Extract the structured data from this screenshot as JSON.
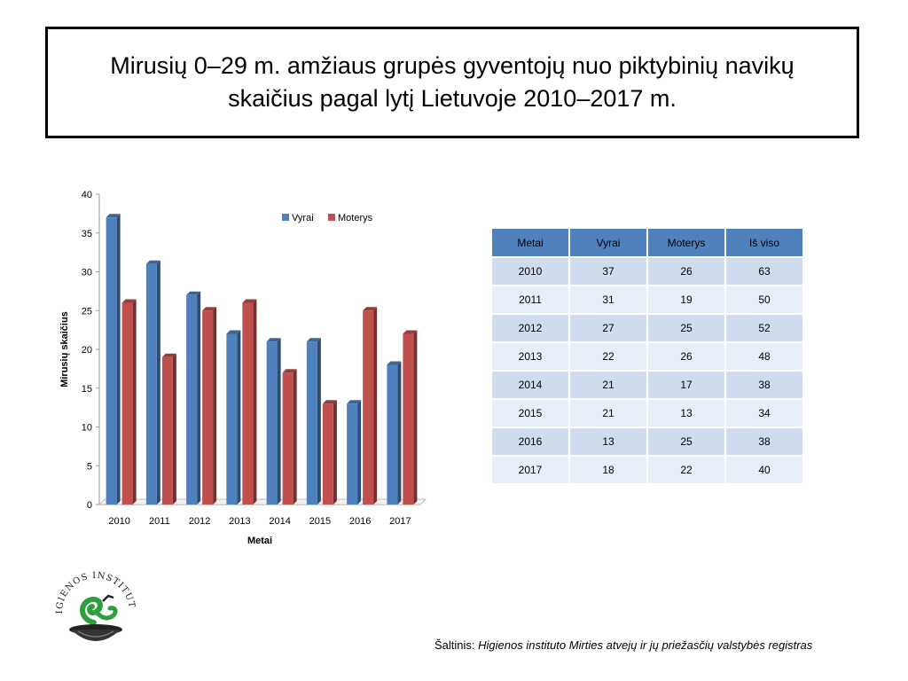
{
  "title": {
    "line1": "Mirusių 0–29 m. amžiaus grupės gyventojų nuo piktybinių navikų",
    "line2": "skaičius pagal lytį Lietuvoje 2010–2017 m."
  },
  "chart_data": {
    "type": "bar",
    "categories": [
      "2010",
      "2011",
      "2012",
      "2013",
      "2014",
      "2015",
      "2016",
      "2017"
    ],
    "series": [
      {
        "name": "Vyrai",
        "color": "#4f81bd",
        "values": [
          37,
          31,
          27,
          22,
          21,
          21,
          13,
          18
        ]
      },
      {
        "name": "Moterys",
        "color": "#c0504d",
        "values": [
          26,
          19,
          25,
          26,
          17,
          13,
          25,
          22
        ]
      }
    ],
    "xlabel": "Metai",
    "ylabel": "Mirusių skaičius",
    "ylim": [
      0,
      40
    ],
    "yticks": [
      0,
      5,
      10,
      15,
      20,
      25,
      30,
      35,
      40
    ],
    "grid": false,
    "legend": "top-right",
    "style": "3d-clustered-columns"
  },
  "table": {
    "headers": [
      "Metai",
      "Vyrai",
      "Moterys",
      "Iš viso"
    ],
    "rows": [
      [
        "2010",
        "37",
        "26",
        "63"
      ],
      [
        "2011",
        "31",
        "19",
        "50"
      ],
      [
        "2012",
        "27",
        "25",
        "52"
      ],
      [
        "2013",
        "22",
        "26",
        "48"
      ],
      [
        "2014",
        "21",
        "17",
        "38"
      ],
      [
        "2015",
        "21",
        "13",
        "34"
      ],
      [
        "2016",
        "13",
        "25",
        "38"
      ],
      [
        "2017",
        "18",
        "22",
        "40"
      ]
    ]
  },
  "source": {
    "label": "Šaltinis: ",
    "text": "Higienos instituto Mirties atvejų ir jų priežasčių valstybės registras"
  },
  "logo": {
    "text": "HIGIENOS INSTITUTAS",
    "icon": "snake-bowl-logo"
  }
}
